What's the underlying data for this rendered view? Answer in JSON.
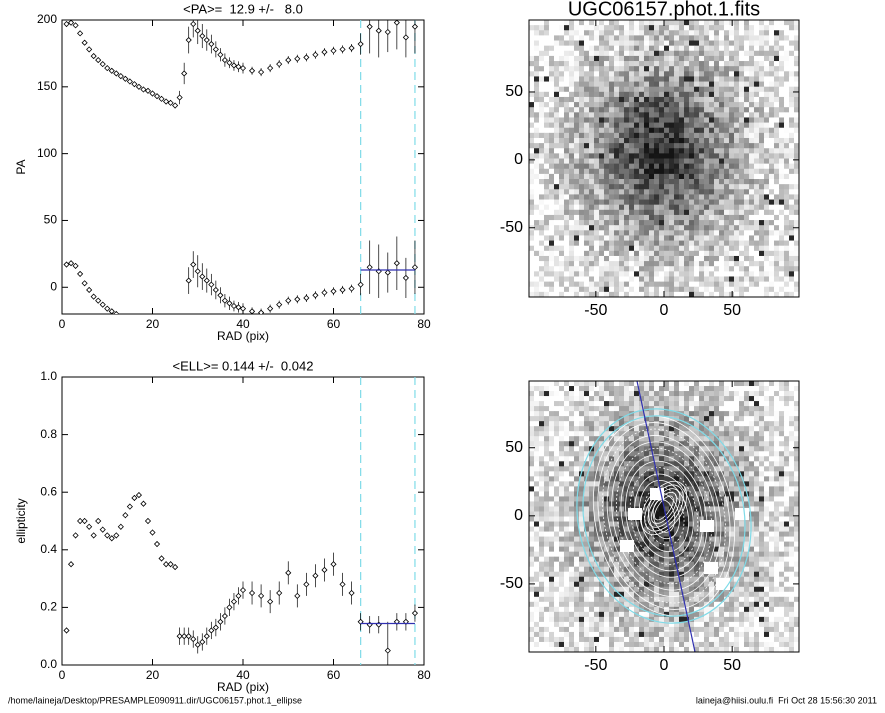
{
  "chart_data": [
    {
      "type": "errorbar",
      "title": "<PA>=  12.9 +/-   8.0",
      "xlabel": "RAD (pix)",
      "ylabel": "PA",
      "xlim": [
        0,
        80
      ],
      "ylim": [
        -20,
        200
      ],
      "xticks": [
        0,
        20,
        40,
        60,
        80
      ],
      "yticks": [
        0,
        50,
        100,
        150,
        200
      ],
      "color": "#000000",
      "mean": {
        "value": 12.9,
        "x": [
          66,
          78
        ],
        "color": "#3030b0"
      },
      "vlines": {
        "x": [
          66,
          78
        ],
        "color": "#7fdbe8"
      },
      "series": [
        {
          "x": [
            1,
            2,
            3,
            4,
            5,
            6,
            7,
            8,
            9,
            10,
            11,
            12,
            13,
            14,
            15,
            16,
            17,
            18,
            19,
            20,
            21,
            22,
            23,
            24,
            25,
            26,
            27,
            28,
            29,
            30,
            31,
            32,
            33,
            34,
            35,
            36,
            37,
            38,
            39,
            40,
            42,
            44,
            46,
            48,
            50,
            52,
            54,
            56,
            58,
            60,
            62,
            64,
            66,
            68,
            70,
            72,
            74,
            76,
            78
          ],
          "values": [
            197,
            198,
            196,
            190,
            183,
            178,
            173,
            170,
            167,
            164,
            162,
            160,
            158,
            156,
            154,
            152,
            150,
            148,
            147,
            145,
            143,
            141,
            139,
            138,
            136,
            142,
            160,
            185,
            197,
            192,
            188,
            185,
            182,
            178,
            174,
            170,
            168,
            166,
            165,
            164,
            162,
            161,
            164,
            167,
            170,
            171,
            172,
            174,
            176,
            177,
            178,
            179,
            182,
            195,
            192,
            191,
            198,
            187,
            195
          ],
          "errors": [
            2,
            2,
            2,
            2,
            2,
            2,
            2,
            2,
            2,
            2,
            2,
            2,
            2,
            2,
            2,
            2,
            2,
            2,
            2,
            2,
            2,
            2,
            2,
            2,
            2,
            5,
            8,
            10,
            10,
            10,
            9,
            8,
            7,
            6,
            5,
            5,
            4,
            4,
            4,
            4,
            3,
            3,
            3,
            3,
            3,
            3,
            3,
            3,
            3,
            3,
            3,
            3,
            8,
            20,
            20,
            15,
            20,
            15,
            20
          ]
        },
        {
          "x": [
            1,
            2,
            3,
            4,
            5,
            6,
            7,
            8,
            9,
            10,
            11,
            12,
            13,
            28,
            29,
            30,
            31,
            32,
            33,
            34,
            35,
            36,
            37,
            38,
            39,
            40,
            42,
            44,
            46,
            48,
            50,
            52,
            54,
            56,
            58,
            60,
            62,
            64,
            66,
            68,
            70,
            72,
            74,
            76,
            78
          ],
          "values": [
            17,
            18,
            16,
            10,
            3,
            -2,
            -7,
            -10,
            -13,
            -16,
            -18,
            -20,
            -22,
            5,
            17,
            12,
            8,
            5,
            2,
            -2,
            -6,
            -10,
            -12,
            -14,
            -15,
            -16,
            -18,
            -19,
            -16,
            -13,
            -10,
            -9,
            -8,
            -6,
            -4,
            -3,
            -2,
            -1,
            2,
            15,
            12,
            11,
            18,
            7,
            15
          ],
          "errors": [
            2,
            2,
            2,
            2,
            2,
            2,
            2,
            2,
            2,
            2,
            2,
            2,
            2,
            10,
            10,
            12,
            10,
            9,
            8,
            7,
            6,
            5,
            5,
            4,
            4,
            4,
            3,
            3,
            3,
            3,
            3,
            3,
            3,
            3,
            3,
            3,
            3,
            3,
            8,
            20,
            20,
            15,
            20,
            15,
            20
          ]
        }
      ]
    },
    {
      "type": "errorbar",
      "title": "<ELL>= 0.144 +/-  0.042",
      "xlabel": "RAD (pix)",
      "ylabel": "ellipticity",
      "xlim": [
        0,
        80
      ],
      "ylim": [
        0,
        1
      ],
      "xticks": [
        0,
        20,
        40,
        60,
        80
      ],
      "yticks": [
        {
          "value": 0,
          "label": "0.0"
        },
        {
          "value": 0.2,
          "label": "0.2"
        },
        {
          "value": 0.4,
          "label": "0.4"
        },
        {
          "value": 0.6,
          "label": "0.6"
        },
        {
          "value": 0.8,
          "label": "0.8"
        },
        {
          "value": 1,
          "label": "1.0"
        }
      ],
      "color": "#000000",
      "mean": {
        "value": 0.144,
        "x": [
          66,
          78
        ],
        "color": "#3030b0"
      },
      "vlines": {
        "x": [
          66,
          78
        ],
        "color": "#7fdbe8"
      },
      "series": [
        {
          "x": [
            1,
            2,
            3,
            4,
            5,
            6,
            7,
            8,
            9,
            10,
            11,
            12,
            13,
            14,
            15,
            16,
            17,
            18,
            19,
            20,
            21,
            22,
            23,
            24,
            25,
            26,
            27,
            28,
            29,
            30,
            31,
            32,
            33,
            34,
            35,
            36,
            37,
            38,
            39,
            40,
            42,
            44,
            46,
            48,
            50,
            52,
            54,
            56,
            58,
            60,
            62,
            64,
            66,
            68,
            70,
            72,
            74,
            76,
            78
          ],
          "values": [
            0.12,
            0.35,
            0.45,
            0.5,
            0.5,
            0.48,
            0.45,
            0.5,
            0.47,
            0.45,
            0.44,
            0.45,
            0.48,
            0.52,
            0.55,
            0.58,
            0.59,
            0.56,
            0.5,
            0.46,
            0.42,
            0.37,
            0.35,
            0.35,
            0.34,
            0.1,
            0.1,
            0.1,
            0.09,
            0.07,
            0.08,
            0.1,
            0.12,
            0.13,
            0.15,
            0.17,
            0.2,
            0.22,
            0.24,
            0.26,
            0.25,
            0.24,
            0.22,
            0.25,
            0.32,
            0.24,
            0.28,
            0.31,
            0.33,
            0.35,
            0.28,
            0.25,
            0.15,
            0.14,
            0.14,
            0.05,
            0.15,
            0.15,
            0.18
          ],
          "errors": [
            0.01,
            0.01,
            0.01,
            0.01,
            0.01,
            0.01,
            0.01,
            0.01,
            0.01,
            0.01,
            0.01,
            0.01,
            0.01,
            0.01,
            0.01,
            0.01,
            0.01,
            0.01,
            0.01,
            0.01,
            0.01,
            0.01,
            0.01,
            0.01,
            0.01,
            0.03,
            0.03,
            0.03,
            0.03,
            0.03,
            0.03,
            0.03,
            0.03,
            0.03,
            0.03,
            0.03,
            0.03,
            0.03,
            0.03,
            0.03,
            0.04,
            0.04,
            0.04,
            0.04,
            0.04,
            0.04,
            0.04,
            0.04,
            0.04,
            0.04,
            0.04,
            0.04,
            0.03,
            0.03,
            0.03,
            0.1,
            0.03,
            0.03,
            0.03
          ]
        }
      ]
    },
    {
      "type": "image",
      "title": "UGC06157.phot.1.fits",
      "xlim": [
        -99,
        99
      ],
      "ylim": [
        -101,
        103
      ],
      "xticks": [
        -50,
        0,
        50
      ],
      "yticks": [
        -50,
        0,
        50
      ]
    },
    {
      "type": "image",
      "xlim": [
        -99,
        99
      ],
      "ylim": [
        -100,
        99
      ],
      "xticks": [
        -50,
        0,
        50
      ],
      "yticks": [
        -50,
        0,
        50
      ]
    }
  ],
  "footer": {
    "left": "/home/laineja/Desktop/PRESAMPLE090911.dir/UGC06157.phot.1_ellipse",
    "right": "laineja@hiisi.oulu.fi  Fri Oct 28 15:56:30 2011"
  }
}
